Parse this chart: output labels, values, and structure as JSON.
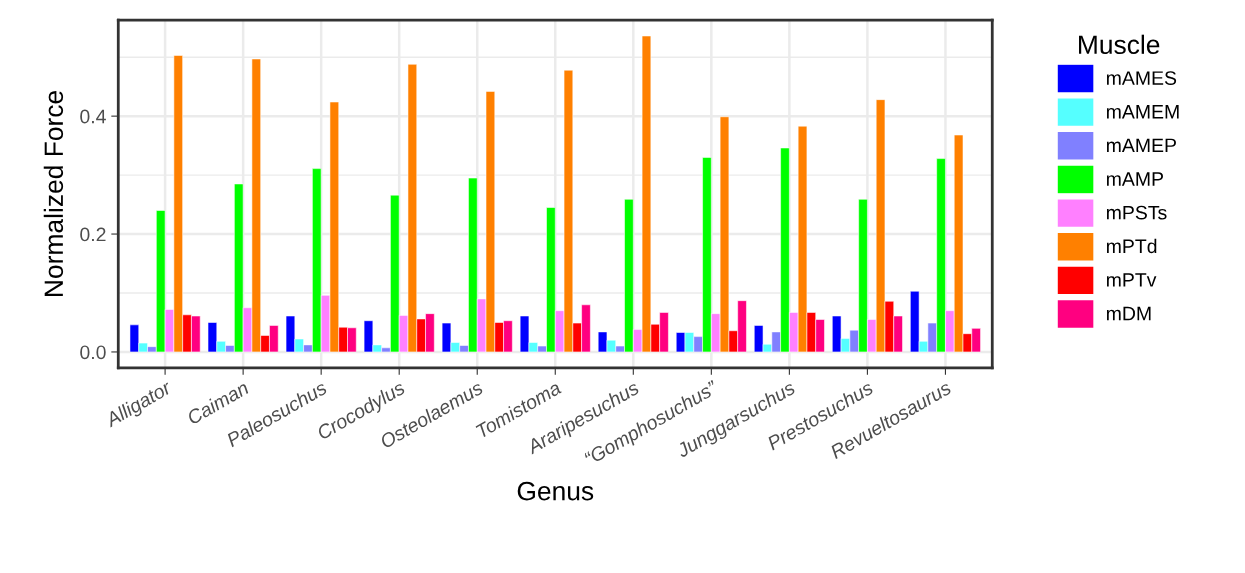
{
  "chart_data": {
    "type": "bar",
    "xlabel": "Genus",
    "ylabel": "Normalized Force",
    "legend_title": "Muscle",
    "categories": [
      "Alligator",
      "Caiman",
      "Paleosuchus",
      "Crocodylus",
      "Osteolaemus",
      "Tomistoma",
      "Araripesuchus",
      "“Gomphosuchus”",
      "Junggarsuchus",
      "Prestosuchus",
      "Revueltosaurus"
    ],
    "series": [
      {
        "name": "mAMES",
        "color": "#0000ff",
        "values": [
          0.046,
          0.05,
          0.061,
          0.053,
          0.049,
          0.061,
          0.034,
          0.033,
          0.045,
          0.061,
          0.103
        ]
      },
      {
        "name": "mAMEM",
        "color": "#55ffff",
        "values": [
          0.015,
          0.018,
          0.022,
          0.012,
          0.016,
          0.016,
          0.02,
          0.033,
          0.013,
          0.023,
          0.018
        ]
      },
      {
        "name": "mAMEP",
        "color": "#8080ff",
        "values": [
          0.009,
          0.011,
          0.012,
          0.007,
          0.011,
          0.01,
          0.01,
          0.026,
          0.034,
          0.037,
          0.049
        ]
      },
      {
        "name": "mAMP",
        "color": "#00ff00",
        "values": [
          0.24,
          0.285,
          0.311,
          0.266,
          0.295,
          0.245,
          0.259,
          0.33,
          0.346,
          0.259,
          0.328
        ]
      },
      {
        "name": "mPSTs",
        "color": "#ff80ff",
        "values": [
          0.072,
          0.075,
          0.096,
          0.062,
          0.09,
          0.07,
          0.038,
          0.065,
          0.067,
          0.055,
          0.07
        ]
      },
      {
        "name": "mPTd",
        "color": "#ff8000",
        "values": [
          0.503,
          0.497,
          0.424,
          0.488,
          0.442,
          0.478,
          0.536,
          0.399,
          0.383,
          0.428,
          0.368
        ]
      },
      {
        "name": "mPTv",
        "color": "#ff0000",
        "values": [
          0.063,
          0.028,
          0.042,
          0.056,
          0.05,
          0.049,
          0.047,
          0.036,
          0.067,
          0.086,
          0.031
        ]
      },
      {
        "name": "mDM",
        "color": "#ff0080",
        "values": [
          0.061,
          0.045,
          0.041,
          0.065,
          0.053,
          0.08,
          0.067,
          0.087,
          0.055,
          0.061,
          0.04
        ]
      }
    ],
    "ylim": [
      -0.027,
      0.563
    ],
    "yticks": [
      {
        "value": 0,
        "label": "0.0"
      },
      {
        "value": 0.2,
        "label": "0.2"
      },
      {
        "value": 0.4,
        "label": "0.4"
      }
    ],
    "grid": true,
    "legend": "right"
  }
}
